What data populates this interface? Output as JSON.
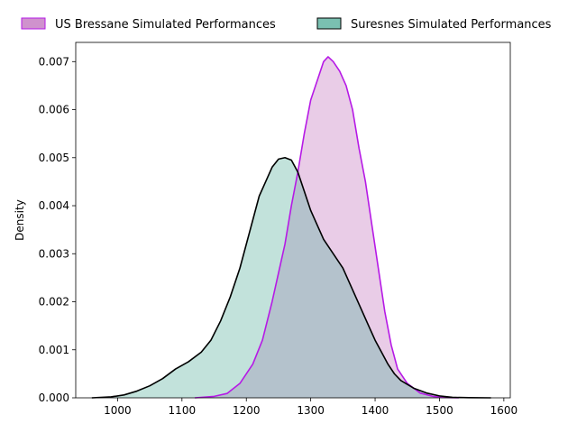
{
  "chart_data": {
    "type": "area",
    "title": "",
    "xlabel": "",
    "ylabel": "Density",
    "xlim": [
      935,
      1610
    ],
    "ylim": [
      0,
      0.0074
    ],
    "x_ticks": [
      1000,
      1100,
      1200,
      1300,
      1400,
      1500,
      1600
    ],
    "x_tick_labels": [
      "1000",
      "1100",
      "1200",
      "1300",
      "1400",
      "1500",
      "1600"
    ],
    "y_ticks": [
      0,
      0.001,
      0.002,
      0.003,
      0.004,
      0.005,
      0.006,
      0.007
    ],
    "y_tick_labels": [
      "0.000",
      "0.001",
      "0.002",
      "0.003",
      "0.004",
      "0.005",
      "0.006",
      "0.007"
    ],
    "legend_position": "top",
    "grid": false,
    "series": [
      {
        "name": "US Bressane Simulated Performances",
        "fill": "#c77fc4",
        "fill_opacity": 0.4,
        "line": "#b619e6",
        "points": [
          [
            1120,
            0
          ],
          [
            1150,
            3e-05
          ],
          [
            1170,
            9e-05
          ],
          [
            1190,
            0.0003
          ],
          [
            1210,
            0.0007
          ],
          [
            1225,
            0.0012
          ],
          [
            1240,
            0.002
          ],
          [
            1250,
            0.0026
          ],
          [
            1260,
            0.0032
          ],
          [
            1270,
            0.004
          ],
          [
            1280,
            0.0047
          ],
          [
            1290,
            0.0055
          ],
          [
            1300,
            0.0062
          ],
          [
            1310,
            0.0066
          ],
          [
            1320,
            0.007
          ],
          [
            1327,
            0.0071
          ],
          [
            1335,
            0.007
          ],
          [
            1345,
            0.0068
          ],
          [
            1355,
            0.0065
          ],
          [
            1365,
            0.006
          ],
          [
            1375,
            0.0052
          ],
          [
            1385,
            0.0045
          ],
          [
            1395,
            0.0036
          ],
          [
            1405,
            0.0027
          ],
          [
            1415,
            0.0018
          ],
          [
            1425,
            0.0011
          ],
          [
            1435,
            0.0006
          ],
          [
            1450,
            0.0003
          ],
          [
            1470,
            0.0001
          ],
          [
            1490,
            3e-05
          ],
          [
            1510,
            5e-06
          ],
          [
            1530,
            0
          ]
        ]
      },
      {
        "name": "Suresnes Simulated Performances",
        "fill": "#5fb3a1",
        "fill_opacity": 0.38,
        "line": "#000000",
        "points": [
          [
            960,
            0
          ],
          [
            990,
            2e-05
          ],
          [
            1010,
            6e-05
          ],
          [
            1030,
            0.00014
          ],
          [
            1050,
            0.00025
          ],
          [
            1070,
            0.0004
          ],
          [
            1090,
            0.0006
          ],
          [
            1110,
            0.00075
          ],
          [
            1130,
            0.00095
          ],
          [
            1145,
            0.0012
          ],
          [
            1160,
            0.0016
          ],
          [
            1175,
            0.0021
          ],
          [
            1190,
            0.0027
          ],
          [
            1200,
            0.0032
          ],
          [
            1210,
            0.0037
          ],
          [
            1220,
            0.0042
          ],
          [
            1230,
            0.0045
          ],
          [
            1240,
            0.0048
          ],
          [
            1250,
            0.00497
          ],
          [
            1260,
            0.005
          ],
          [
            1270,
            0.00495
          ],
          [
            1280,
            0.0047
          ],
          [
            1290,
            0.0043
          ],
          [
            1300,
            0.0039
          ],
          [
            1310,
            0.0036
          ],
          [
            1320,
            0.0033
          ],
          [
            1330,
            0.0031
          ],
          [
            1340,
            0.0029
          ],
          [
            1350,
            0.0027
          ],
          [
            1360,
            0.0024
          ],
          [
            1370,
            0.0021
          ],
          [
            1380,
            0.0018
          ],
          [
            1390,
            0.0015
          ],
          [
            1400,
            0.0012
          ],
          [
            1410,
            0.00095
          ],
          [
            1420,
            0.0007
          ],
          [
            1430,
            0.0005
          ],
          [
            1440,
            0.00036
          ],
          [
            1460,
            0.0002
          ],
          [
            1480,
            0.0001
          ],
          [
            1500,
            4e-05
          ],
          [
            1520,
            1e-05
          ],
          [
            1545,
            3e-06
          ],
          [
            1580,
            0
          ]
        ]
      }
    ]
  }
}
